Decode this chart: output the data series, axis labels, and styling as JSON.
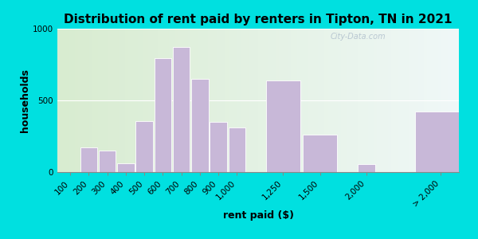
{
  "title": "Distribution of rent paid by renters in Tipton, TN in 2021",
  "xlabel": "rent paid ($)",
  "ylabel": "households",
  "bar_color": "#c8b8d8",
  "bar_edge_color": "#ffffff",
  "background_outer": "#00e0e0",
  "background_inner_left": "#d8ecd0",
  "background_inner_right": "#f0f8f8",
  "ylim": [
    0,
    1000
  ],
  "yticks": [
    0,
    500,
    1000
  ],
  "categories": [
    "100",
    "200",
    "300",
    "400",
    "500",
    "600",
    "700",
    "800",
    "900",
    "1,000",
    "1,250",
    "1,500",
    "2,000",
    "> 2,000"
  ],
  "values": [
    0,
    175,
    150,
    60,
    355,
    795,
    875,
    650,
    350,
    310,
    640,
    260,
    55,
    425
  ],
  "bar_positions": [
    0,
    1,
    2,
    3,
    4,
    5,
    6,
    7,
    8,
    9,
    10,
    11,
    12,
    13
  ],
  "watermark": "City-Data.com",
  "title_fontsize": 11,
  "label_fontsize": 9,
  "tick_fontsize": 7.5
}
